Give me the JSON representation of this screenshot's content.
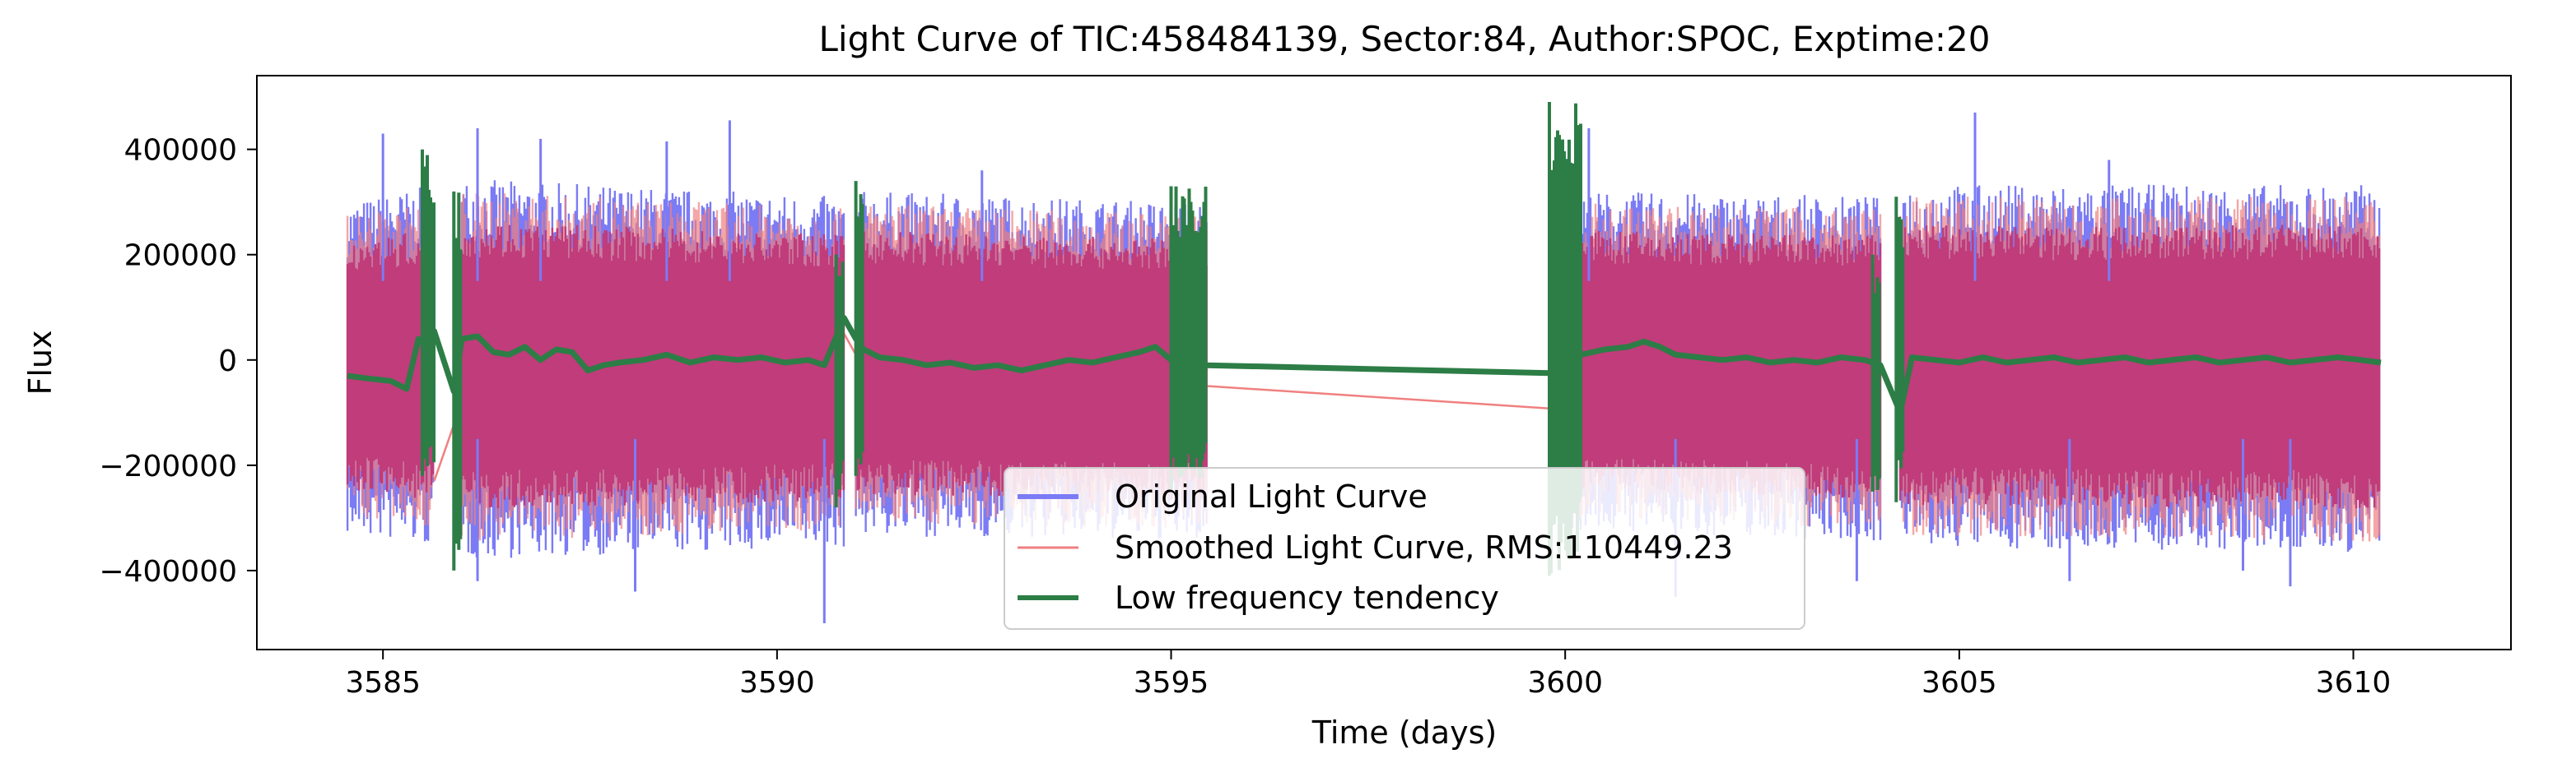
{
  "chart_data": {
    "type": "line",
    "title": "Light Curve of TIC:458484139, Sector:84, Author:SPOC, Exptime:20",
    "xlabel": "Time (days)",
    "ylabel": "Flux",
    "xlim": [
      3583.4,
      3612.0
    ],
    "ylim": [
      -550000,
      540000
    ],
    "grid": false,
    "legend_position": "bottom-center",
    "x_ticks": [
      3585,
      3590,
      3595,
      3600,
      3605,
      3610
    ],
    "x_tick_labels": [
      "3585",
      "3590",
      "3595",
      "3600",
      "3605",
      "3610"
    ],
    "y_ticks": [
      400000,
      200000,
      0,
      -200000,
      -400000
    ],
    "y_tick_labels": [
      "400000",
      "200000",
      "0",
      "−200000",
      "−400000"
    ],
    "segments": [
      [
        3584.55,
        3585.65
      ],
      [
        3586.0,
        3590.85
      ],
      [
        3591.0,
        3595.45
      ],
      [
        3599.8,
        3604.0
      ],
      [
        3604.25,
        3610.35
      ]
    ],
    "series": [
      {
        "name": "Original Light Curve",
        "color": "#7b7bf5",
        "style": "envelope",
        "upper": [
          [
            3584.55,
            260000
          ],
          [
            3585.65,
            290000
          ],
          [
            3586.0,
            300000
          ],
          [
            3590.85,
            270000
          ],
          [
            3591.0,
            280000
          ],
          [
            3595.45,
            260000
          ],
          [
            3599.8,
            280000
          ],
          [
            3604.0,
            270000
          ],
          [
            3604.25,
            290000
          ],
          [
            3610.35,
            290000
          ]
        ],
        "lower": [
          [
            3584.55,
            -290000
          ],
          [
            3585.65,
            -310000
          ],
          [
            3586.0,
            -330000
          ],
          [
            3590.85,
            -310000
          ],
          [
            3591.0,
            -290000
          ],
          [
            3595.45,
            -300000
          ],
          [
            3599.8,
            -280000
          ],
          [
            3604.0,
            -300000
          ],
          [
            3604.25,
            -310000
          ],
          [
            3610.35,
            -320000
          ]
        ]
      },
      {
        "name": "Smoothed Light Curve, RMS:110449.23",
        "color": "#f08080",
        "style": "envelope",
        "upper": [
          [
            3584.55,
            240000
          ],
          [
            3585.65,
            260000
          ],
          [
            3586.0,
            280000
          ],
          [
            3590.85,
            250000
          ],
          [
            3591.0,
            260000
          ],
          [
            3595.45,
            240000
          ],
          [
            3599.8,
            260000
          ],
          [
            3604.0,
            250000
          ],
          [
            3604.25,
            270000
          ],
          [
            3610.35,
            270000
          ]
        ],
        "lower": [
          [
            3584.55,
            -260000
          ],
          [
            3585.65,
            -280000
          ],
          [
            3586.0,
            -300000
          ],
          [
            3590.85,
            -280000
          ],
          [
            3591.0,
            -270000
          ],
          [
            3595.45,
            -280000
          ],
          [
            3599.8,
            -260000
          ],
          [
            3604.0,
            -280000
          ],
          [
            3604.25,
            -290000
          ],
          [
            3610.35,
            -300000
          ]
        ],
        "gap_lines": [
          [
            [
              3585.65,
              -230000
            ],
            [
              3586.0,
              -80000
            ]
          ],
          [
            [
              3590.85,
              50000
            ],
            [
              3591.0,
              10000
            ]
          ],
          [
            [
              3595.0,
              -45000
            ],
            [
              3600.1,
              -95000
            ]
          ],
          [
            [
              3604.0,
              -20000
            ],
            [
              3604.25,
              -90000
            ]
          ]
        ]
      },
      {
        "name": "Low frequency tendency",
        "color": "#2d7d46",
        "style": "line",
        "points": [
          [
            3584.55,
            -30000
          ],
          [
            3584.8,
            -35000
          ],
          [
            3585.1,
            -40000
          ],
          [
            3585.3,
            -55000
          ],
          [
            3585.45,
            40000
          ],
          [
            3585.55,
            25000
          ],
          [
            3585.65,
            55000
          ],
          [
            3585.9,
            -60000
          ],
          [
            3586.0,
            40000
          ],
          [
            3586.2,
            45000
          ],
          [
            3586.4,
            15000
          ],
          [
            3586.6,
            10000
          ],
          [
            3586.8,
            25000
          ],
          [
            3587.0,
            0
          ],
          [
            3587.2,
            20000
          ],
          [
            3587.4,
            15000
          ],
          [
            3587.6,
            -20000
          ],
          [
            3587.8,
            -10000
          ],
          [
            3588.0,
            -5000
          ],
          [
            3588.3,
            0
          ],
          [
            3588.6,
            10000
          ],
          [
            3588.9,
            -5000
          ],
          [
            3589.2,
            5000
          ],
          [
            3589.5,
            0
          ],
          [
            3589.8,
            5000
          ],
          [
            3590.1,
            -5000
          ],
          [
            3590.4,
            0
          ],
          [
            3590.6,
            -10000
          ],
          [
            3590.85,
            80000
          ],
          [
            3591.0,
            40000
          ],
          [
            3591.1,
            20000
          ],
          [
            3591.3,
            5000
          ],
          [
            3591.6,
            0
          ],
          [
            3591.9,
            -10000
          ],
          [
            3592.2,
            -5000
          ],
          [
            3592.5,
            -15000
          ],
          [
            3592.8,
            -10000
          ],
          [
            3593.1,
            -20000
          ],
          [
            3593.4,
            -10000
          ],
          [
            3593.7,
            0
          ],
          [
            3594.0,
            -5000
          ],
          [
            3594.3,
            5000
          ],
          [
            3594.6,
            15000
          ],
          [
            3594.8,
            25000
          ],
          [
            3595.0,
            0
          ],
          [
            3595.2,
            -5000
          ],
          [
            3595.45,
            -10000
          ],
          [
            3599.8,
            -25000
          ],
          [
            3600.0,
            -10000
          ],
          [
            3600.2,
            10000
          ],
          [
            3600.5,
            20000
          ],
          [
            3600.8,
            25000
          ],
          [
            3601.0,
            35000
          ],
          [
            3601.2,
            25000
          ],
          [
            3601.4,
            10000
          ],
          [
            3601.7,
            5000
          ],
          [
            3602.0,
            0
          ],
          [
            3602.3,
            5000
          ],
          [
            3602.6,
            -5000
          ],
          [
            3602.9,
            0
          ],
          [
            3603.2,
            -5000
          ],
          [
            3603.5,
            5000
          ],
          [
            3603.8,
            0
          ],
          [
            3604.0,
            -10000
          ],
          [
            3604.25,
            -100000
          ],
          [
            3604.4,
            5000
          ],
          [
            3604.7,
            0
          ],
          [
            3605.0,
            -5000
          ],
          [
            3605.3,
            5000
          ],
          [
            3605.6,
            -5000
          ],
          [
            3605.9,
            0
          ],
          [
            3606.2,
            5000
          ],
          [
            3606.5,
            -5000
          ],
          [
            3606.8,
            0
          ],
          [
            3607.1,
            5000
          ],
          [
            3607.4,
            -5000
          ],
          [
            3607.7,
            0
          ],
          [
            3608.0,
            5000
          ],
          [
            3608.3,
            -5000
          ],
          [
            3608.6,
            0
          ],
          [
            3608.9,
            5000
          ],
          [
            3609.2,
            -5000
          ],
          [
            3609.5,
            0
          ],
          [
            3609.8,
            5000
          ],
          [
            3610.1,
            0
          ],
          [
            3610.35,
            -5000
          ]
        ],
        "bursts": [
          {
            "x": [
              3585.5,
              3585.65
            ],
            "ylim": [
              -220000,
              400000
            ]
          },
          {
            "x": [
              3585.9,
              3586.0
            ],
            "ylim": [
              -400000,
              320000
            ]
          },
          {
            "x": [
              3590.75,
              3590.85
            ],
            "ylim": [
              -280000,
              200000
            ]
          },
          {
            "x": [
              3591.0,
              3591.1
            ],
            "ylim": [
              -220000,
              340000
            ]
          },
          {
            "x": [
              3595.0,
              3595.45
            ],
            "ylim": [
              -250000,
              330000
            ]
          },
          {
            "x": [
              3599.8,
              3600.2
            ],
            "ylim": [
              -410000,
              490000
            ]
          },
          {
            "x": [
              3603.9,
              3604.0
            ],
            "ylim": [
              -250000,
              200000
            ]
          },
          {
            "x": [
              3604.2,
              3604.3
            ],
            "ylim": [
              -270000,
              310000
            ]
          }
        ]
      }
    ],
    "spikes_up": [
      [
        3585.0,
        430000
      ],
      [
        3586.2,
        440000
      ],
      [
        3587.0,
        420000
      ],
      [
        3588.6,
        415000
      ],
      [
        3589.4,
        455000
      ],
      [
        3592.6,
        360000
      ],
      [
        3600.3,
        440000
      ],
      [
        3605.2,
        470000
      ],
      [
        3606.9,
        380000
      ]
    ],
    "spikes_down": [
      [
        3586.2,
        -420000
      ],
      [
        3588.2,
        -440000
      ],
      [
        3590.6,
        -500000
      ],
      [
        3601.4,
        -450000
      ],
      [
        3603.7,
        -420000
      ],
      [
        3606.4,
        -420000
      ],
      [
        3608.6,
        -400000
      ],
      [
        3609.2,
        -430000
      ]
    ]
  }
}
